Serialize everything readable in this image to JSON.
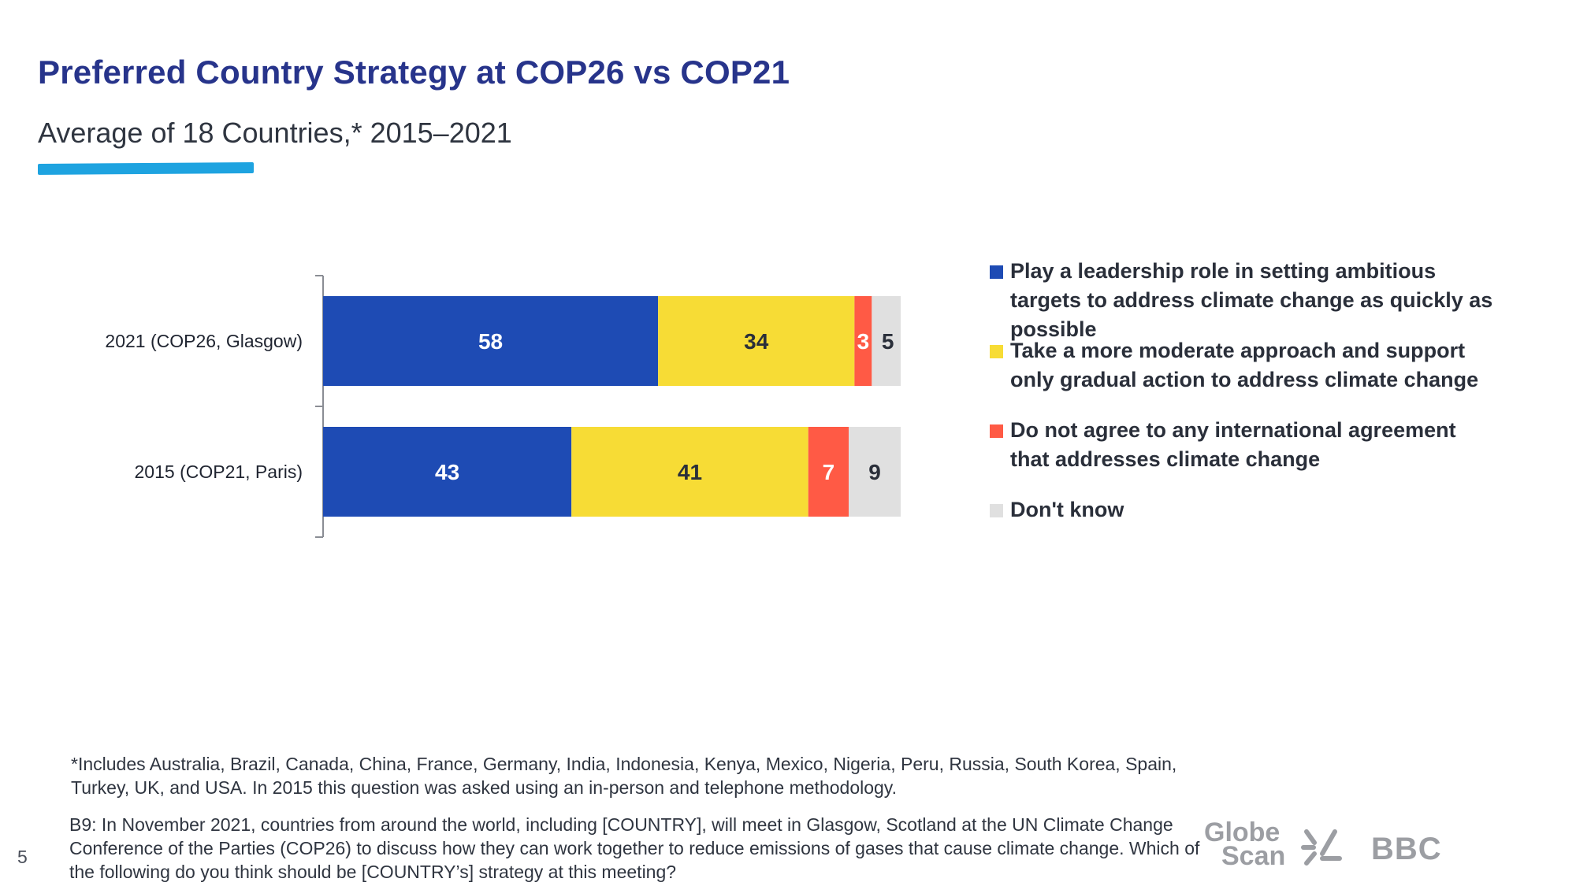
{
  "header": {
    "title": "Preferred Country Strategy at COP26 vs COP21",
    "subtitle": "Average of 18 Countries,* 2015–2021"
  },
  "colors": {
    "title": "#27348b",
    "accent_underline": "#1ea3e0"
  },
  "chart_data": {
    "type": "bar",
    "orientation": "horizontal",
    "stacked": true,
    "categories": [
      "2021 (COP26, Glasgow)",
      "2015 (COP21, Paris)"
    ],
    "series": [
      {
        "name": "Play a leadership role in setting ambitious targets to address climate change as quickly as possible",
        "color": "#1e4bb4",
        "label_color": "#ffffff",
        "values": [
          58,
          43
        ]
      },
      {
        "name": "Take a more moderate approach and support only gradual action to address climate change",
        "color": "#f7dc35",
        "label_color": "#2a2f3a",
        "values": [
          34,
          41
        ]
      },
      {
        "name": "Do not agree to any international agreement that addresses climate change",
        "color": "#ff5a45",
        "label_color": "#ffffff",
        "values": [
          3,
          7
        ]
      },
      {
        "name": "Don't know",
        "color": "#e0e0e0",
        "label_color": "#2a2f3a",
        "values": [
          5,
          9
        ]
      }
    ],
    "xlim": [
      0,
      100
    ],
    "grid": false,
    "legend": "right"
  },
  "footer": {
    "footnote": "*Includes Australia, Brazil, Canada, China, France, Germany, India, Indonesia, Kenya, Mexico, Nigeria, Peru, Russia, South Korea, Spain, Turkey, UK, and USA. In 2015 this question was asked using an in-person and telephone methodology.",
    "question": "B9: In November 2021, countries from around the world, including [COUNTRY], will meet in Glasgow, Scotland at the UN Climate Change Conference of the Parties (COP26) to discuss how they can work together to reduce emissions of gases that cause climate change. Which of the following do you think should be [COUNTRY’s] strategy at this meeting?",
    "page_number": "5",
    "logo_globescan_line1": "Globe",
    "logo_globescan_line2": "Scan",
    "logo_bbc": "BBC"
  }
}
